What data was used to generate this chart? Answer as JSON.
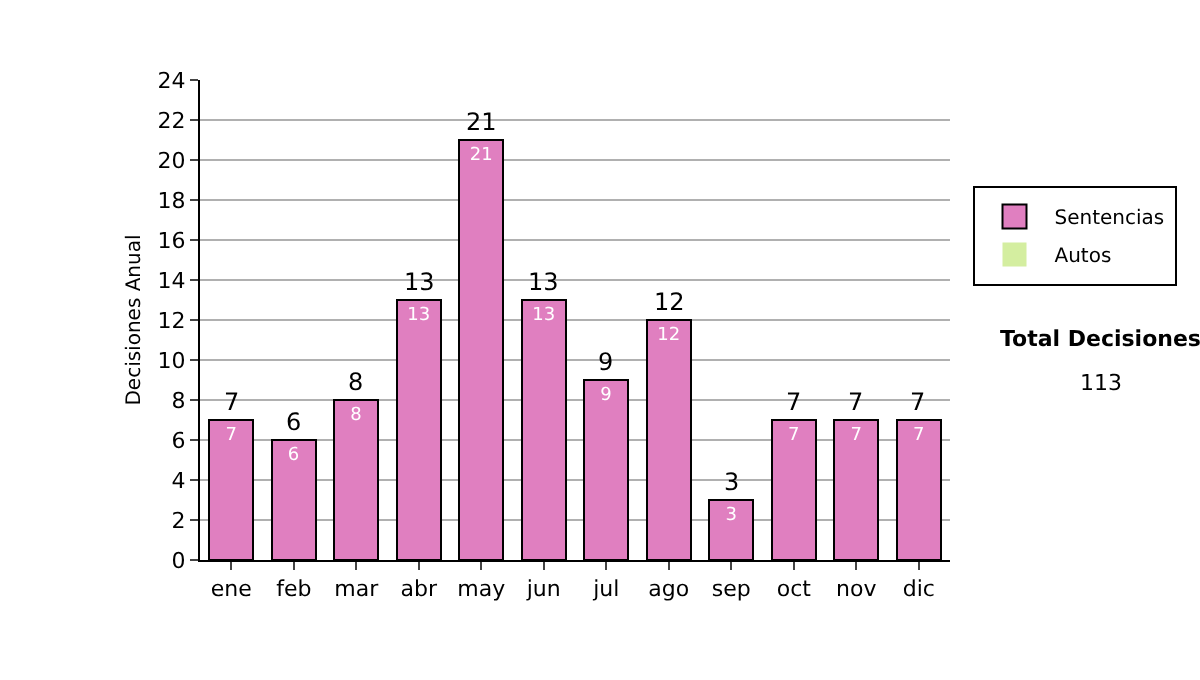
{
  "chart_data": {
    "type": "bar",
    "stacked": true,
    "ylabel": "Decisiones Anual",
    "categories": [
      "ene",
      "feb",
      "mar",
      "abr",
      "may",
      "jun",
      "jul",
      "ago",
      "sep",
      "oct",
      "nov",
      "dic"
    ],
    "series": [
      {
        "name": "Sentencias",
        "color": "#e07fc0",
        "values": [
          7,
          6,
          8,
          13,
          21,
          13,
          9,
          12,
          3,
          7,
          7,
          7
        ],
        "value_labels": [
          "7",
          "6",
          "8",
          "13",
          "21",
          "13",
          "9",
          "12",
          "3",
          "7",
          "7",
          "7"
        ]
      },
      {
        "name": "Autos",
        "color": "#d4eea0",
        "values": [
          0,
          0,
          0,
          0,
          0,
          0,
          0,
          0,
          0,
          0,
          0,
          0
        ]
      }
    ],
    "totals": [
      "7",
      "6",
      "8",
      "13",
      "21",
      "13",
      "9",
      "12",
      "3",
      "7",
      "7",
      "7"
    ],
    "ylim": [
      0,
      24
    ],
    "yticks": [
      0,
      2,
      4,
      6,
      8,
      10,
      12,
      14,
      16,
      18,
      20,
      22,
      24
    ],
    "grid": "y",
    "legend": "right",
    "annotations": [
      "Total Decisiones",
      "113"
    ]
  }
}
